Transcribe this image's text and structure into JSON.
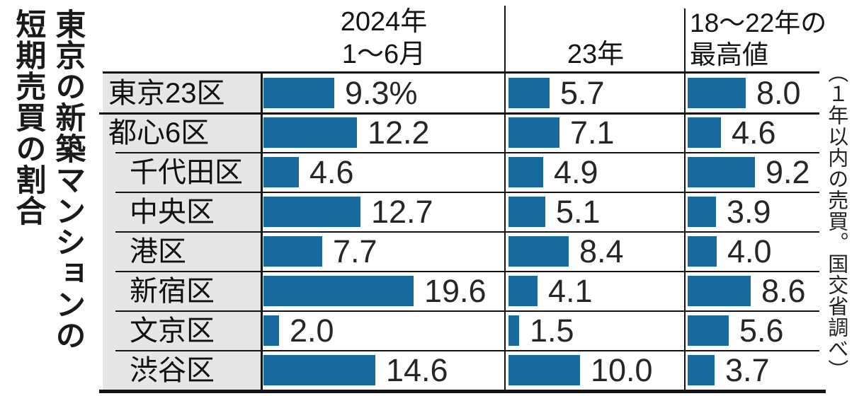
{
  "title": {
    "full": "東京の新築マンションの短期売買の割合",
    "lines": [
      "東京の新築マンションの",
      "短期売買の割合"
    ]
  },
  "chart_data": {
    "type": "bar",
    "orientation": "horizontal",
    "title": "東京の新築マンションの短期売買の割合",
    "unit": "%",
    "bar_color": "#17699e",
    "label_bg_color": "#e6e6e6",
    "categories": [
      "東京23区",
      "都心6区",
      "千代田区",
      "中央区",
      "港区",
      "新宿区",
      "文京区",
      "渋谷区"
    ],
    "category_is_subitem": [
      false,
      false,
      true,
      true,
      true,
      true,
      true,
      true
    ],
    "series": [
      {
        "name": "2024年1〜6月",
        "header_lines": [
          "2024年",
          "1〜6月"
        ],
        "values": [
          9.3,
          12.2,
          4.6,
          12.7,
          7.7,
          19.6,
          2.0,
          14.6
        ]
      },
      {
        "name": "23年",
        "header_lines": [
          "23年"
        ],
        "values": [
          5.7,
          7.1,
          4.9,
          5.1,
          8.4,
          4.1,
          1.5,
          10.0
        ]
      },
      {
        "name": "18〜22年の最高値",
        "header_lines": [
          "18〜22年の",
          "最高値"
        ],
        "values": [
          8.0,
          4.6,
          9.2,
          3.9,
          4.0,
          8.6,
          5.6,
          3.7
        ]
      }
    ],
    "first_value_shows_unit": true,
    "note": "（１年以内の売買。国交省調べ）",
    "legend_position": "none",
    "grid": false
  }
}
